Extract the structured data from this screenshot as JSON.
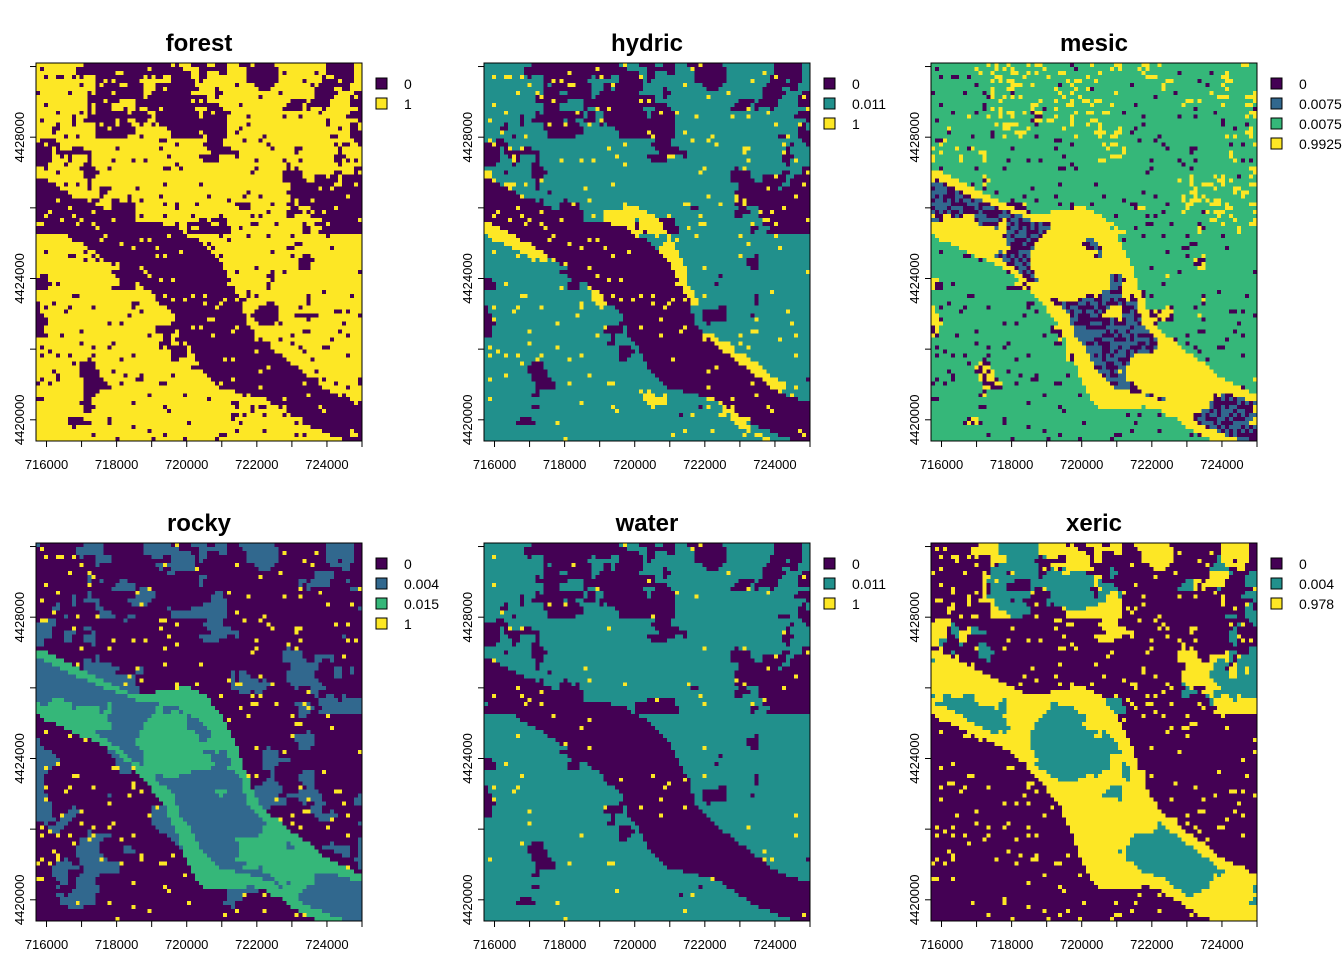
{
  "colors": {
    "dark_purple": "#440154",
    "blue": "#31688e",
    "teal": "#21908c",
    "green": "#35b779",
    "yellow": "#fde725"
  },
  "chart_data": [
    {
      "type": "heatmap",
      "title": "forest",
      "x_ticks": [
        "716000",
        "718000",
        "720000",
        "722000",
        "724000"
      ],
      "y_ticks": [
        "4420000",
        "4424000",
        "4428000"
      ],
      "legend": [
        {
          "label": "0",
          "color": "#440154"
        },
        {
          "label": "1",
          "color": "#fde725"
        }
      ]
    },
    {
      "type": "heatmap",
      "title": "hydric",
      "x_ticks": [
        "716000",
        "718000",
        "720000",
        "722000",
        "724000"
      ],
      "y_ticks": [
        "4420000",
        "4424000",
        "4428000"
      ],
      "legend": [
        {
          "label": "0",
          "color": "#440154"
        },
        {
          "label": "0.011",
          "color": "#21908c"
        },
        {
          "label": "1",
          "color": "#fde725"
        }
      ]
    },
    {
      "type": "heatmap",
      "title": "mesic",
      "x_ticks": [
        "716000",
        "718000",
        "720000",
        "722000",
        "724000"
      ],
      "y_ticks": [
        "4420000",
        "4424000",
        "4428000"
      ],
      "legend": [
        {
          "label": "0",
          "color": "#440154"
        },
        {
          "label": "0.0075",
          "color": "#31688e"
        },
        {
          "label": "0.0075",
          "color": "#35b779"
        },
        {
          "label": "0.9925",
          "color": "#fde725"
        }
      ]
    },
    {
      "type": "heatmap",
      "title": "rocky",
      "x_ticks": [
        "716000",
        "718000",
        "720000",
        "722000",
        "724000"
      ],
      "y_ticks": [
        "4420000",
        "4424000",
        "4428000"
      ],
      "legend": [
        {
          "label": "0",
          "color": "#440154"
        },
        {
          "label": "0.004",
          "color": "#31688e"
        },
        {
          "label": "0.015",
          "color": "#35b779"
        },
        {
          "label": "1",
          "color": "#fde725"
        }
      ]
    },
    {
      "type": "heatmap",
      "title": "water",
      "x_ticks": [
        "716000",
        "718000",
        "720000",
        "722000",
        "724000"
      ],
      "y_ticks": [
        "4420000",
        "4424000",
        "4428000"
      ],
      "legend": [
        {
          "label": "0",
          "color": "#440154"
        },
        {
          "label": "0.011",
          "color": "#21908c"
        },
        {
          "label": "1",
          "color": "#fde725"
        }
      ]
    },
    {
      "type": "heatmap",
      "title": "xeric",
      "x_ticks": [
        "716000",
        "718000",
        "720000",
        "722000",
        "724000"
      ],
      "y_ticks": [
        "4420000",
        "4424000",
        "4428000"
      ],
      "legend": [
        {
          "label": "0",
          "color": "#440154"
        },
        {
          "label": "0.004",
          "color": "#21908c"
        },
        {
          "label": "0.978",
          "color": "#fde725"
        }
      ]
    }
  ]
}
